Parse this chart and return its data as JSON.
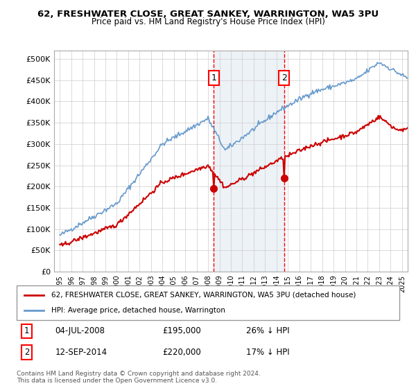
{
  "title": "62, FRESHWATER CLOSE, GREAT SANKEY, WARRINGTON, WA5 3PU",
  "subtitle": "Price paid vs. HM Land Registry's House Price Index (HPI)",
  "xlabel": "",
  "ylabel": "",
  "background_color": "#ffffff",
  "plot_bg_color": "#ffffff",
  "grid_color": "#cccccc",
  "hpi_color": "#6699cc",
  "price_color": "#cc0000",
  "marker1_date_idx": 159,
  "marker2_date_idx": 231,
  "marker1_label": "1",
  "marker2_label": "2",
  "marker1_price": 195000,
  "marker2_price": 220000,
  "marker1_date": "04-JUL-2008",
  "marker2_date": "12-SEP-2014",
  "marker1_pct": "26% ↓ HPI",
  "marker2_pct": "17% ↓ HPI",
  "legend_line1": "62, FRESHWATER CLOSE, GREAT SANKEY, WARRINGTON, WA5 3PU (detached house)",
  "legend_line2": "HPI: Average price, detached house, Warrington",
  "footer": "Contains HM Land Registry data © Crown copyright and database right 2024.\nThis data is licensed under the Open Government Licence v3.0.",
  "ylim": [
    0,
    520000
  ],
  "yticks": [
    0,
    50000,
    100000,
    150000,
    200000,
    250000,
    300000,
    350000,
    400000,
    450000,
    500000
  ],
  "start_year": 1995,
  "end_year": 2025
}
